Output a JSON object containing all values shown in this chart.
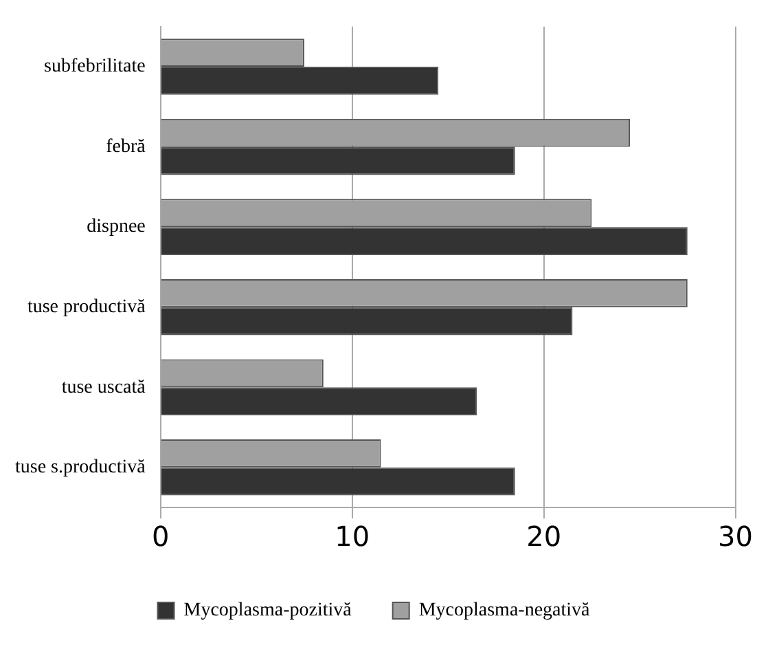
{
  "chart_data": {
    "type": "bar",
    "orientation": "horizontal",
    "categories": [
      "subfebrilitate",
      "febră",
      "dispnee",
      "tuse productivă",
      "tuse uscată",
      "tuse s.productivă"
    ],
    "series": [
      {
        "name": "Mycoplasma-pozitivă",
        "color": "#333333",
        "values": [
          14.5,
          18.5,
          27.5,
          21.5,
          16.5,
          18.5
        ]
      },
      {
        "name": "Mycoplasma-negativă",
        "color": "#a0a0a0",
        "values": [
          7.5,
          24.5,
          22.5,
          27.5,
          8.5,
          11.5
        ]
      }
    ],
    "xlim": [
      0,
      30
    ],
    "xticks": [
      0,
      10,
      20,
      30
    ],
    "grid": "x",
    "legend": "bottom"
  }
}
